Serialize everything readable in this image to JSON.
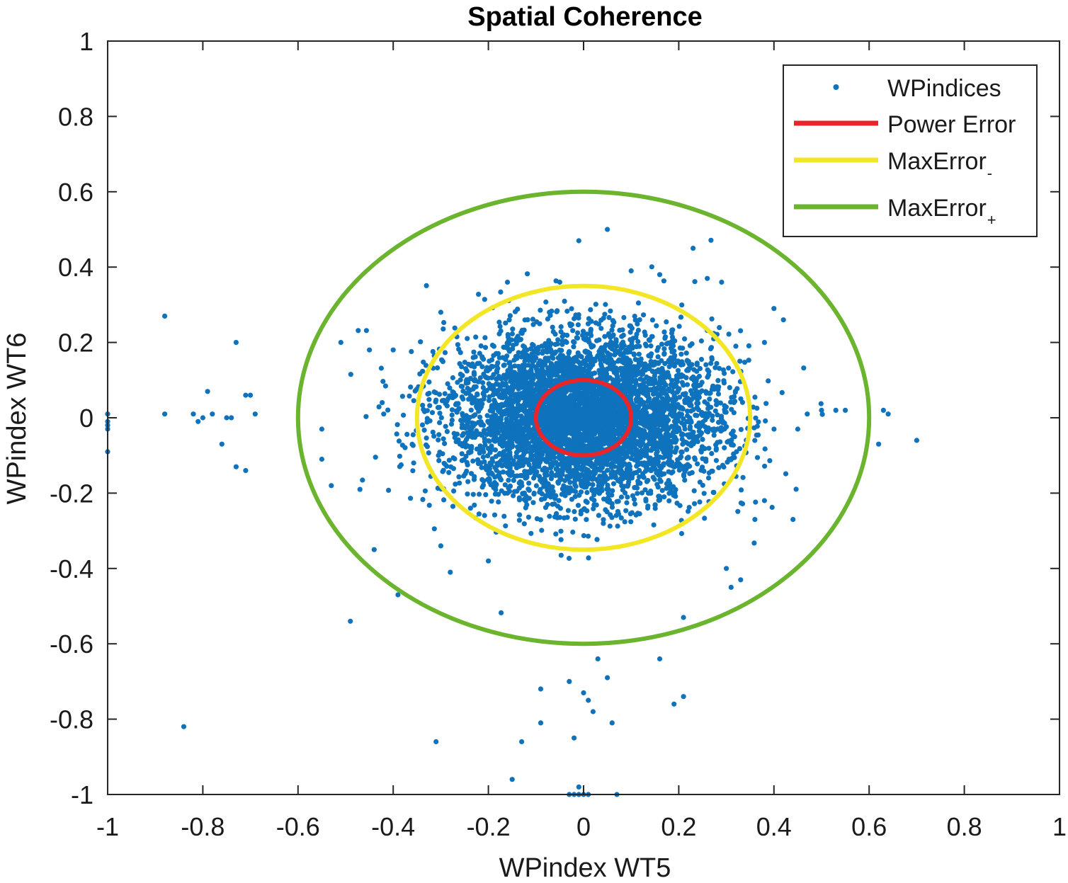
{
  "chart_data": {
    "type": "scatter",
    "title": "Spatial Coherence",
    "xlabel": "WPindex WT5",
    "ylabel": "WPindex WT6",
    "xlim": [
      -1,
      1
    ],
    "ylim": [
      -1,
      1
    ],
    "x_ticks": [
      -1,
      -0.8,
      -0.6,
      -0.4,
      -0.2,
      0,
      0.2,
      0.4,
      0.6,
      0.8,
      1
    ],
    "y_ticks": [
      -1,
      -0.8,
      -0.6,
      -0.4,
      -0.2,
      0,
      0.2,
      0.4,
      0.6,
      0.8,
      1
    ],
    "x_tick_labels": [
      "-1",
      "-0.8",
      "-0.6",
      "-0.4",
      "-0.2",
      "0",
      "0.2",
      "0.4",
      "0.6",
      "0.8",
      "1"
    ],
    "y_tick_labels": [
      "-1",
      "-0.8",
      "-0.6",
      "-0.4",
      "-0.2",
      "0",
      "0.2",
      "0.4",
      "0.6",
      "0.8",
      "1"
    ],
    "grid": false,
    "legend_position": "top-right",
    "series": [
      {
        "name": "WPindices",
        "kind": "scatter",
        "color": "#0e72bd",
        "distribution": {
          "center": [
            0,
            0
          ],
          "core_sigma_x": 0.14,
          "core_sigma_y": 0.11,
          "core_count": 5200,
          "seed": 7
        },
        "notable_points": [
          [
            -0.88,
            0.27
          ],
          [
            -0.73,
            0.2
          ],
          [
            -0.79,
            0.07
          ],
          [
            -0.71,
            0.06
          ],
          [
            -0.7,
            0.06
          ],
          [
            -0.88,
            0.01
          ],
          [
            -0.82,
            0.01
          ],
          [
            -0.8,
            0.0
          ],
          [
            -0.78,
            0.01
          ],
          [
            -0.75,
            0.0
          ],
          [
            -0.74,
            0.0
          ],
          [
            -0.69,
            0.01
          ],
          [
            -0.81,
            -0.01
          ],
          [
            -0.76,
            -0.07
          ],
          [
            -0.73,
            -0.13
          ],
          [
            -0.71,
            -0.14
          ],
          [
            -1.0,
            0.01
          ],
          [
            -1.0,
            -0.01
          ],
          [
            -1.0,
            -0.02
          ],
          [
            -1.0,
            -0.03
          ],
          [
            -1.0,
            -0.09
          ],
          [
            -0.84,
            -0.82
          ],
          [
            -0.49,
            -0.54
          ],
          [
            -0.31,
            -0.86
          ],
          [
            -0.2,
            -0.38
          ],
          [
            -0.15,
            -0.96
          ],
          [
            -0.13,
            -0.86
          ],
          [
            -0.09,
            -0.81
          ],
          [
            -0.09,
            -0.72
          ],
          [
            -0.03,
            -0.7
          ],
          [
            -0.02,
            -0.85
          ],
          [
            0.0,
            -0.73
          ],
          [
            0.01,
            -0.75
          ],
          [
            0.02,
            -0.78
          ],
          [
            0.06,
            -0.81
          ],
          [
            0.07,
            -1.0
          ],
          [
            -0.01,
            -0.98
          ],
          [
            -0.03,
            -1.0
          ],
          [
            -0.02,
            -1.0
          ],
          [
            -0.01,
            -1.0
          ],
          [
            0.0,
            -1.0
          ],
          [
            0.01,
            -1.0
          ],
          [
            0.21,
            -0.74
          ],
          [
            0.19,
            -0.76
          ],
          [
            0.05,
            -0.69
          ],
          [
            0.03,
            -0.64
          ],
          [
            0.16,
            -0.64
          ],
          [
            -0.01,
            0.47
          ],
          [
            0.05,
            0.5
          ],
          [
            0.23,
            0.45
          ],
          [
            0.1,
            0.39
          ],
          [
            0.16,
            0.38
          ],
          [
            0.26,
            0.37
          ],
          [
            0.29,
            0.36
          ],
          [
            0.4,
            0.29
          ],
          [
            0.42,
            0.26
          ],
          [
            0.38,
            0.2
          ],
          [
            0.32,
            0.19
          ],
          [
            0.5,
            0.02
          ],
          [
            0.53,
            0.02
          ],
          [
            0.55,
            0.02
          ],
          [
            0.63,
            0.02
          ],
          [
            0.64,
            0.01
          ],
          [
            0.62,
            -0.07
          ],
          [
            0.7,
            -0.06
          ],
          [
            0.45,
            -0.03
          ],
          [
            0.47,
            0.01
          ],
          [
            0.36,
            -0.27
          ],
          [
            0.33,
            -0.43
          ],
          [
            0.3,
            -0.4
          ],
          [
            0.21,
            -0.53
          ],
          [
            -0.16,
            -0.2
          ],
          [
            -0.39,
            -0.47
          ],
          [
            -0.28,
            -0.41
          ],
          [
            -0.3,
            -0.34
          ],
          [
            -0.42,
            0.01
          ],
          [
            -0.55,
            -0.03
          ],
          [
            -0.55,
            -0.11
          ],
          [
            -0.53,
            -0.18
          ],
          [
            -0.51,
            0.2
          ],
          [
            -0.45,
            0.18
          ],
          [
            -0.4,
            0.18
          ],
          [
            -0.3,
            0.28
          ],
          [
            -0.16,
            0.36
          ],
          [
            -0.47,
            -0.19
          ],
          [
            -0.44,
            -0.35
          ],
          [
            0.44,
            -0.27
          ],
          [
            0.38,
            -0.22
          ],
          [
            0.31,
            -0.45
          ],
          [
            -0.05,
            0.36
          ]
        ]
      },
      {
        "name": "Power Error",
        "kind": "ellipse",
        "color": "#e8262a",
        "rx": 0.1,
        "ry": 0.1
      },
      {
        "name": "MaxError",
        "name_subscript": "-",
        "kind": "ellipse",
        "color": "#f3e624",
        "rx": 0.35,
        "ry": 0.35
      },
      {
        "name": "MaxError",
        "name_subscript": "+",
        "kind": "ellipse",
        "color": "#6ab42e",
        "rx": 0.6,
        "ry": 0.6
      }
    ]
  }
}
